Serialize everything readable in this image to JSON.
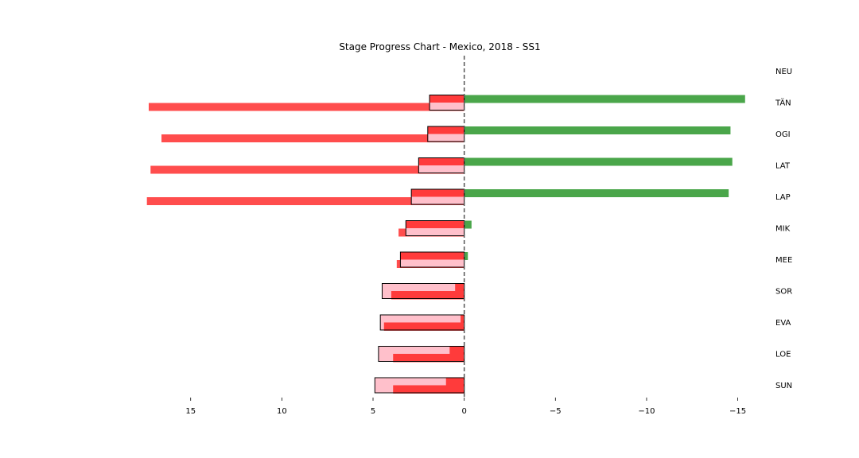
{
  "chart_data": {
    "type": "bar",
    "orientation": "horizontal",
    "title": "Stage Progress Chart - Mexico, 2018 - SS1",
    "xlabel": "",
    "ylabel": "",
    "x_axis_inverted": true,
    "xlim": [
      19,
      -16.5
    ],
    "xticks": [
      15,
      10,
      5,
      0,
      -5,
      -10,
      -15
    ],
    "xtick_labels": [
      "15",
      "10",
      "5",
      "0",
      "−5",
      "−10",
      "−15"
    ],
    "zero_line": "dashed",
    "grid": false,
    "legend": "none",
    "driver_label_position": "right",
    "colors": {
      "overall_positive": "#ff4d4d",
      "overall_negative": "#4aa64a",
      "stage_box_fill": "#ffc0cb",
      "stage_inner": "#ff3b3b",
      "stage_box_edge": "#000000",
      "zero_line": "#555555"
    },
    "categories": [
      "NEU",
      "TÄN",
      "OGI",
      "LAT",
      "LAP",
      "MIK",
      "MEE",
      "SOR",
      "EVA",
      "LOE",
      "SUN"
    ],
    "series": [
      {
        "values": [
          0.0,
          -15.4,
          -14.6,
          -14.7,
          -14.5,
          -0.4,
          -0.2,
          0.0,
          0.0,
          0.0,
          0.0
        ]
      },
      {
        "values": [
          0.0,
          17.3,
          16.6,
          17.2,
          17.4,
          3.6,
          3.7,
          4.0,
          4.4,
          3.9,
          3.9
        ]
      },
      {
        "values": [
          0.0,
          1.9,
          2.0,
          2.5,
          2.9,
          3.2,
          3.5,
          4.5,
          4.6,
          4.7,
          4.9
        ]
      },
      {
        "values": [
          0.0,
          1.9,
          2.0,
          2.5,
          2.9,
          3.2,
          3.5,
          0.5,
          0.2,
          0.8,
          1.0
        ]
      }
    ]
  }
}
